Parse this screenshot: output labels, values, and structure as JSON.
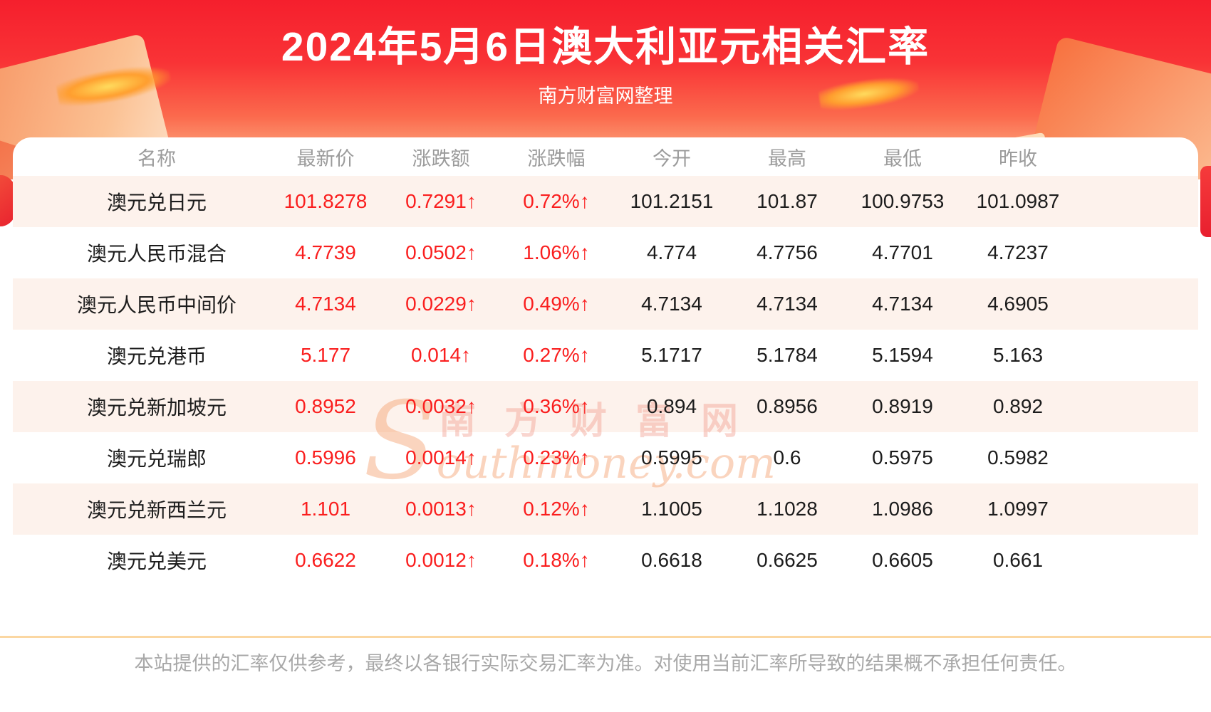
{
  "header": {
    "title": "2024年5月6日澳大利亚元相关汇率",
    "subtitle": "南方财富网整理"
  },
  "watermark": {
    "cn": "南方财富网",
    "en": "Southmoney.com"
  },
  "chart_data": {
    "type": "table",
    "title": "2024年5月6日澳大利亚元相关汇率",
    "subtitle": "南方财富网整理",
    "columns": [
      "名称",
      "最新价",
      "涨跌额",
      "涨跌幅",
      "今开",
      "最高",
      "最低",
      "昨收"
    ],
    "rows": [
      {
        "name": "澳元兑日元",
        "latest": "101.8278",
        "change": "0.7291↑",
        "change_pct": "0.72%↑",
        "open": "101.2151",
        "high": "101.87",
        "low": "100.9753",
        "prev_close": "101.0987"
      },
      {
        "name": "澳元人民币混合",
        "latest": "4.7739",
        "change": "0.0502↑",
        "change_pct": "1.06%↑",
        "open": "4.774",
        "high": "4.7756",
        "low": "4.7701",
        "prev_close": "4.7237"
      },
      {
        "name": "澳元人民币中间价",
        "latest": "4.7134",
        "change": "0.0229↑",
        "change_pct": "0.49%↑",
        "open": "4.7134",
        "high": "4.7134",
        "low": "4.7134",
        "prev_close": "4.6905"
      },
      {
        "name": "澳元兑港币",
        "latest": "5.177",
        "change": "0.014↑",
        "change_pct": "0.27%↑",
        "open": "5.1717",
        "high": "5.1784",
        "low": "5.1594",
        "prev_close": "5.163"
      },
      {
        "name": "澳元兑新加坡元",
        "latest": "0.8952",
        "change": "0.0032↑",
        "change_pct": "0.36%↑",
        "open": "0.894",
        "high": "0.8956",
        "low": "0.8919",
        "prev_close": "0.892"
      },
      {
        "name": "澳元兑瑞郎",
        "latest": "0.5996",
        "change": "0.0014↑",
        "change_pct": "0.23%↑",
        "open": "0.5995",
        "high": "0.6",
        "low": "0.5975",
        "prev_close": "0.5982"
      },
      {
        "name": "澳元兑新西兰元",
        "latest": "1.101",
        "change": "0.0013↑",
        "change_pct": "0.12%↑",
        "open": "1.1005",
        "high": "1.1028",
        "low": "1.0986",
        "prev_close": "1.0997"
      },
      {
        "name": "澳元兑美元",
        "latest": "0.6622",
        "change": "0.0012↑",
        "change_pct": "0.18%↑",
        "open": "0.6618",
        "high": "0.6625",
        "low": "0.6605",
        "prev_close": "0.661"
      }
    ]
  },
  "footer": {
    "disclaimer": "本站提供的汇率仅供参考，最终以各银行实际交易汇率为准。对使用当前汇率所导致的结果概不承担任何责任。"
  },
  "colors": {
    "accent_red": "#fa1e1e",
    "banner_red_top": "#f51f2d",
    "banner_peach_bottom": "#fdcfae",
    "row_alt_bg": "#fdf2ec",
    "header_text_gray": "#9b9b9b",
    "divider_tan": "#fbd7a2",
    "disclaimer_gray": "#a8a8a8"
  }
}
